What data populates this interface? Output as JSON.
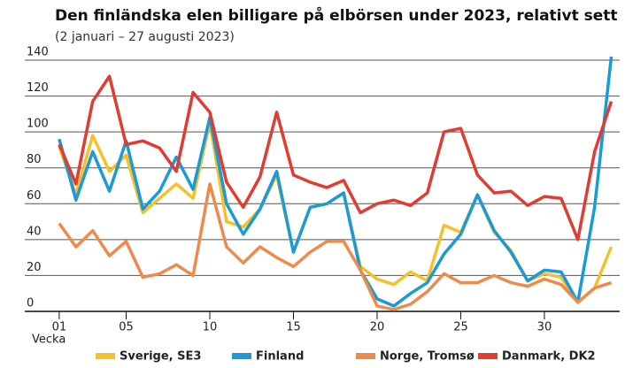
{
  "chart_data": {
    "type": "line",
    "title": "Den finländska elen billigare på elbörsen under 2023, relativt sett",
    "subtitle": "(2 januari – 27 augusti 2023)",
    "x_label": "Vecka",
    "x": [
      1,
      2,
      3,
      4,
      5,
      6,
      7,
      8,
      9,
      10,
      11,
      12,
      13,
      14,
      15,
      16,
      17,
      18,
      19,
      20,
      21,
      22,
      23,
      24,
      25,
      26,
      27,
      28,
      29,
      30,
      31,
      32,
      33,
      34
    ],
    "xlim": [
      0,
      34.5
    ],
    "xticks": [
      {
        "value": 1,
        "label": "01"
      },
      {
        "value": 5,
        "label": "05"
      },
      10,
      15,
      20,
      25,
      30
    ],
    "ylim": [
      0,
      140
    ],
    "yticks": [
      0,
      20,
      40,
      60,
      80,
      100,
      120,
      140
    ],
    "grid": true,
    "legend": "bottom",
    "series": [
      {
        "name": "Sverige, SE3",
        "color": "#f5c02a",
        "values": [
          92,
          65,
          98,
          78,
          87,
          55,
          63,
          71,
          63,
          105,
          50,
          47,
          57,
          76,
          33,
          58,
          60,
          66,
          25,
          18,
          15,
          22,
          17,
          48,
          44,
          65,
          44,
          34,
          17,
          21,
          19,
          5,
          13,
          36
        ]
      },
      {
        "name": "Finland",
        "color": "#1a9ad6",
        "values": [
          96,
          62,
          89,
          67,
          95,
          57,
          67,
          86,
          68,
          108,
          60,
          43,
          57,
          78,
          33,
          58,
          60,
          66,
          23,
          7,
          3,
          10,
          16,
          32,
          43,
          65,
          45,
          33,
          17,
          23,
          22,
          5,
          58,
          142
        ]
      },
      {
        "name": "Norge, Tromsø",
        "color": "#f08a4b",
        "values": [
          49,
          36,
          45,
          31,
          39,
          19,
          21,
          26,
          20,
          71,
          36,
          27,
          36,
          30,
          25,
          33,
          39,
          39,
          23,
          3,
          1,
          4,
          11,
          21,
          16,
          16,
          20,
          16,
          14,
          18,
          15,
          5,
          13,
          16
        ]
      },
      {
        "name": "Danmark, DK2",
        "color": "#e03c31",
        "values": [
          93,
          71,
          117,
          131,
          93,
          95,
          91,
          78,
          122,
          111,
          72,
          58,
          75,
          111,
          76,
          72,
          69,
          73,
          55,
          60,
          62,
          59,
          66,
          100,
          102,
          76,
          66,
          67,
          59,
          64,
          63,
          40,
          89,
          117
        ]
      }
    ]
  }
}
